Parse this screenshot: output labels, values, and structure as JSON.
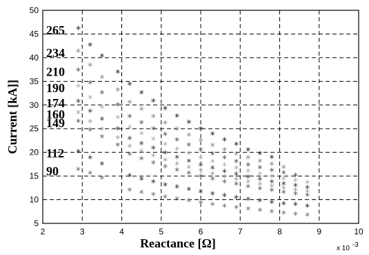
{
  "chart_data": {
    "type": "scatter",
    "xlabel": "Reactance [Ω]",
    "ylabel": "Current  [kA]]",
    "x_multiplier_label": "x 10",
    "x_multiplier_exp": "-3",
    "xlim": [
      2,
      10
    ],
    "ylim": [
      5,
      50
    ],
    "xticks": [
      "2",
      "3",
      "4",
      "5",
      "6",
      "7",
      "8",
      "9",
      "10"
    ],
    "yticks": [
      "5",
      "10",
      "15",
      "20",
      "25",
      "30",
      "35",
      "40",
      "45",
      "50"
    ],
    "grid": true,
    "marker": "*",
    "series": [
      {
        "name": "265",
        "color": "#1a1a1a",
        "x": [
          2.9,
          3.2,
          3.5,
          3.9,
          4.2,
          4.5,
          4.8,
          5.1,
          5.4,
          5.7,
          6.0,
          6.3,
          6.6,
          6.9,
          7.2,
          7.5,
          7.8
        ],
        "y": [
          45.8,
          42.3,
          40.0,
          36.6,
          34.0,
          32.2,
          30.5,
          28.9,
          27.3,
          26.0,
          24.6,
          23.5,
          22.3,
          21.3,
          20.2,
          19.4,
          18.6
        ]
      },
      {
        "name": "234",
        "color": "#808080",
        "x": [
          2.9,
          3.2,
          3.5,
          3.9,
          4.2,
          4.5,
          4.8,
          5.1,
          5.4,
          5.7,
          6.0,
          6.3,
          6.6,
          6.9,
          7.2,
          7.5,
          7.8,
          8.1
        ],
        "y": [
          41.0,
          38.0,
          35.5,
          32.8,
          30.2,
          28.7,
          27.2,
          25.8,
          24.5,
          23.3,
          22.2,
          21.1,
          20.2,
          19.3,
          18.5,
          17.8,
          17.1,
          16.5
        ]
      },
      {
        "name": "210",
        "color": "#4d4d4d",
        "x": [
          2.9,
          3.2,
          3.5,
          3.9,
          4.2,
          4.5,
          4.8,
          5.1,
          5.4,
          5.7,
          6.0,
          6.3,
          6.6,
          6.9,
          7.2,
          7.5,
          7.8,
          8.1,
          8.4
        ],
        "y": [
          37.0,
          34.3,
          32.2,
          29.7,
          27.2,
          25.9,
          24.6,
          23.4,
          22.3,
          21.2,
          20.2,
          19.3,
          18.5,
          17.7,
          17.0,
          16.4,
          15.8,
          15.3,
          14.8
        ]
      },
      {
        "name": "190",
        "color": "#a6a6a6",
        "x": [
          2.9,
          3.2,
          3.5,
          3.9,
          4.2,
          4.5,
          4.8,
          5.1,
          5.4,
          5.7,
          6.0,
          6.3,
          6.6,
          6.9,
          7.2,
          7.5,
          7.8,
          8.1,
          8.4,
          8.7
        ],
        "y": [
          33.6,
          31.2,
          29.2,
          27.0,
          24.9,
          23.6,
          22.4,
          21.3,
          20.3,
          19.4,
          18.5,
          17.7,
          17.0,
          16.3,
          15.7,
          15.1,
          14.6,
          14.1,
          13.7,
          13.3
        ]
      },
      {
        "name": "174",
        "color": "#333333",
        "x": [
          2.9,
          3.2,
          3.5,
          3.9,
          4.2,
          4.5,
          4.8,
          5.1,
          5.4,
          5.7,
          6.0,
          6.3,
          6.6,
          6.9,
          7.2,
          7.5,
          7.8,
          8.1,
          8.4,
          8.7
        ],
        "y": [
          30.4,
          28.3,
          26.6,
          24.6,
          22.6,
          21.5,
          20.5,
          19.5,
          18.6,
          17.8,
          17.0,
          16.3,
          15.6,
          15.0,
          14.4,
          13.9,
          13.4,
          13.0,
          12.6,
          12.2
        ]
      },
      {
        "name": "160",
        "color": "#999999",
        "x": [
          2.9,
          3.2,
          3.5,
          3.9,
          4.2,
          4.5,
          4.8,
          5.1,
          5.4,
          5.7,
          6.0,
          6.3,
          6.6,
          6.9,
          7.2,
          7.5,
          7.8,
          8.1,
          8.4,
          8.7
        ],
        "y": [
          28.0,
          26.1,
          24.5,
          22.7,
          20.9,
          19.9,
          18.9,
          18.0,
          17.2,
          16.5,
          15.8,
          15.1,
          14.5,
          13.9,
          13.4,
          12.9,
          12.5,
          12.1,
          11.7,
          11.4
        ]
      },
      {
        "name": "149",
        "color": "#595959",
        "x": [
          2.9,
          3.2,
          3.5,
          3.9,
          4.2,
          4.5,
          4.8,
          5.1,
          5.4,
          5.7,
          6.0,
          6.3,
          6.6,
          6.9,
          7.2,
          7.5,
          7.8,
          8.1,
          8.4,
          8.7
        ],
        "y": [
          26.2,
          24.4,
          22.9,
          21.2,
          19.2,
          18.3,
          17.4,
          16.6,
          15.9,
          15.2,
          14.6,
          14.0,
          13.4,
          12.9,
          12.4,
          12.0,
          11.6,
          11.2,
          10.9,
          10.6
        ]
      },
      {
        "name": "112",
        "color": "#262626",
        "x": [
          2.9,
          3.2,
          3.5,
          4.2,
          4.5,
          4.8,
          5.1,
          5.4,
          5.7,
          6.0,
          6.3,
          6.6,
          6.9,
          7.2,
          7.5,
          7.8,
          8.1,
          8.4,
          8.7
        ],
        "y": [
          19.8,
          18.5,
          17.2,
          14.7,
          14.0,
          13.4,
          12.8,
          12.3,
          11.8,
          11.3,
          10.9,
          10.5,
          10.1,
          9.7,
          9.4,
          9.1,
          8.8,
          8.6,
          8.3
        ]
      },
      {
        "name": "90",
        "color": "#666666",
        "x": [
          2.9,
          3.2,
          3.5,
          4.2,
          4.5,
          4.8,
          5.1,
          5.4,
          5.7,
          6.0,
          6.3,
          6.6,
          6.9,
          7.2,
          7.5,
          7.8,
          8.1,
          8.4,
          8.7
        ],
        "y": [
          16.0,
          15.2,
          14.2,
          11.7,
          11.2,
          10.7,
          10.2,
          9.8,
          9.4,
          9.0,
          8.6,
          8.3,
          8.0,
          7.7,
          7.4,
          7.1,
          6.8,
          6.6,
          6.4
        ]
      }
    ]
  }
}
